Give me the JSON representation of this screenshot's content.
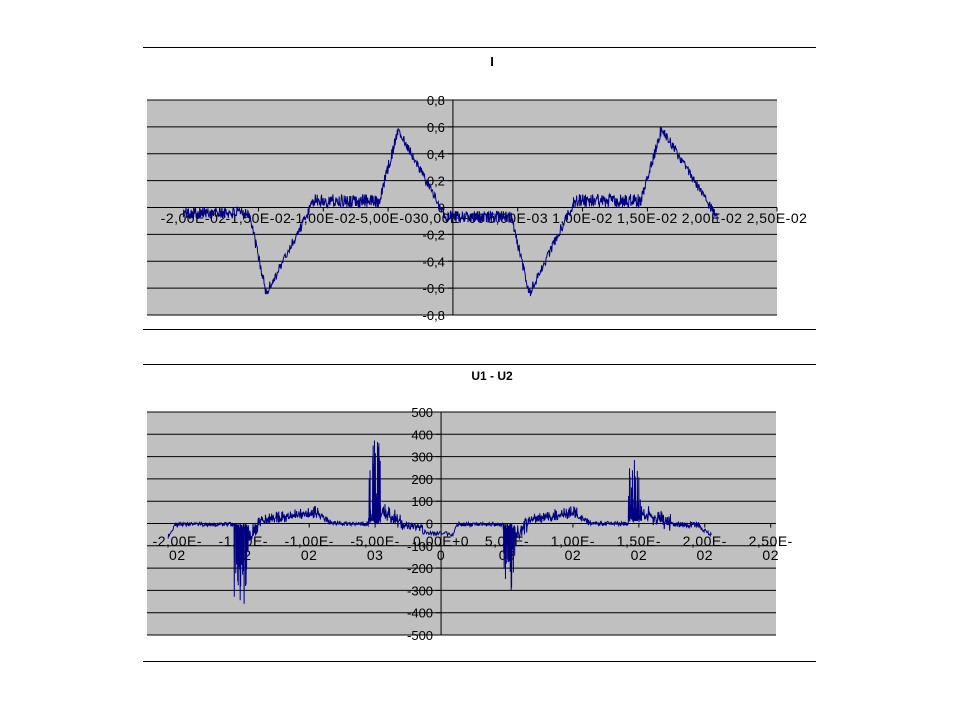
{
  "page": {
    "background_color": "#ffffff",
    "separator_color": "#000000"
  },
  "chart_data": [
    {
      "type": "line",
      "title": "I",
      "series_color": "#000080",
      "plot_bg_color": "#c0c0c0",
      "grid_color": "#000000",
      "x_range": [
        -0.0236,
        0.025
      ],
      "y_range": [
        -0.8,
        0.8
      ],
      "grid": "horizontal",
      "legend": "none",
      "x_ticks": [
        {
          "v": -0.02,
          "lines": [
            "-2,00E-02"
          ]
        },
        {
          "v": -0.015,
          "lines": [
            "-1,50E-02"
          ]
        },
        {
          "v": -0.01,
          "lines": [
            "-1,00E-02"
          ]
        },
        {
          "v": -0.005,
          "lines": [
            "-5,00E-03"
          ]
        },
        {
          "v": 0,
          "lines": [
            "0,00E+00"
          ]
        },
        {
          "v": 0.005,
          "lines": [
            "5,00E-03"
          ]
        },
        {
          "v": 0.01,
          "lines": [
            "1,00E-02"
          ]
        },
        {
          "v": 0.015,
          "lines": [
            "1,50E-02"
          ]
        },
        {
          "v": 0.02,
          "lines": [
            "2,00E-02"
          ]
        },
        {
          "v": 0.025,
          "lines": [
            "2,50E-02"
          ]
        }
      ],
      "y_ticks": [
        {
          "v": 0.8,
          "label": "0,8"
        },
        {
          "v": 0.6,
          "label": "0,6"
        },
        {
          "v": 0.4,
          "label": "0,4"
        },
        {
          "v": 0.2,
          "label": "0,2"
        },
        {
          "v": 0,
          "label": "0"
        },
        {
          "v": -0.2,
          "label": "-0,2"
        },
        {
          "v": -0.4,
          "label": "-0,4"
        },
        {
          "v": -0.6,
          "label": "-0,6"
        },
        {
          "v": -0.8,
          "label": "-0,8"
        }
      ],
      "segments": [
        {
          "x0": -0.0208,
          "x1": -0.0157,
          "y0": -0.04,
          "y1": -0.04,
          "n": 170,
          "noise": 0.045
        },
        {
          "x0": -0.0157,
          "x1": -0.0144,
          "y0": -0.05,
          "y1": -0.64,
          "n": 40,
          "noise": 0.04
        },
        {
          "x0": -0.0144,
          "x1": -0.0108,
          "y0": -0.64,
          "y1": 0.03,
          "n": 80,
          "noise": 0.04
        },
        {
          "x0": -0.0108,
          "x1": -0.0057,
          "y0": 0.05,
          "y1": 0.05,
          "n": 170,
          "noise": 0.05
        },
        {
          "x0": -0.0057,
          "x1": -0.0042,
          "y0": 0.05,
          "y1": 0.58,
          "n": 50,
          "noise": 0.045
        },
        {
          "x0": -0.0042,
          "x1": -0.0004,
          "y0": 0.58,
          "y1": -0.1,
          "n": 100,
          "noise": 0.035
        },
        {
          "x0": -0.0004,
          "x1": 0.0045,
          "y0": -0.07,
          "y1": -0.07,
          "n": 170,
          "noise": 0.045
        },
        {
          "x0": 0.0045,
          "x1": 0.0059,
          "y0": -0.07,
          "y1": -0.64,
          "n": 40,
          "noise": 0.04
        },
        {
          "x0": 0.0059,
          "x1": 0.0093,
          "y0": -0.64,
          "y1": 0.03,
          "n": 80,
          "noise": 0.04
        },
        {
          "x0": 0.0093,
          "x1": 0.0145,
          "y0": 0.05,
          "y1": 0.05,
          "n": 170,
          "noise": 0.05
        },
        {
          "x0": 0.0145,
          "x1": 0.0161,
          "y0": 0.05,
          "y1": 0.59,
          "n": 50,
          "noise": 0.045
        },
        {
          "x0": 0.0161,
          "x1": 0.0204,
          "y0": 0.59,
          "y1": -0.08,
          "n": 110,
          "noise": 0.035
        }
      ]
    },
    {
      "type": "line",
      "title": "U1 - U2",
      "series_color": "#000080",
      "plot_bg_color": "#c0c0c0",
      "grid_color": "#000000",
      "x_range": [
        -0.0223,
        0.0254
      ],
      "y_range": [
        -500,
        500
      ],
      "grid": "horizontal",
      "legend": "none",
      "x_ticks": [
        {
          "v": -0.02,
          "lines": [
            "-2,00E-",
            "02"
          ]
        },
        {
          "v": -0.015,
          "lines": [
            "-1,50E-",
            "02"
          ]
        },
        {
          "v": -0.01,
          "lines": [
            "-1,00E-",
            "02"
          ]
        },
        {
          "v": -0.005,
          "lines": [
            "-5,00E-",
            "03"
          ]
        },
        {
          "v": 0,
          "lines": [
            "0,00E+0",
            "0"
          ]
        },
        {
          "v": 0.005,
          "lines": [
            "5,00E-",
            "03"
          ]
        },
        {
          "v": 0.01,
          "lines": [
            "1,00E-",
            "02"
          ]
        },
        {
          "v": 0.015,
          "lines": [
            "1,50E-",
            "02"
          ]
        },
        {
          "v": 0.02,
          "lines": [
            "2,00E-",
            "02"
          ]
        },
        {
          "v": 0.025,
          "lines": [
            "2,50E-",
            "02"
          ]
        }
      ],
      "y_ticks": [
        {
          "v": 500,
          "label": "500"
        },
        {
          "v": 400,
          "label": "400"
        },
        {
          "v": 300,
          "label": "300"
        },
        {
          "v": 200,
          "label": "200"
        },
        {
          "v": 100,
          "label": "100"
        },
        {
          "v": 0,
          "label": "0"
        },
        {
          "v": -100,
          "label": "-100"
        },
        {
          "v": -200,
          "label": "-200"
        },
        {
          "v": -300,
          "label": "-300"
        },
        {
          "v": -400,
          "label": "-400"
        },
        {
          "v": -500,
          "label": "-500"
        }
      ],
      "segments": [
        {
          "x0": -0.0207,
          "x1": -0.0202,
          "y0": -60,
          "y1": -8,
          "n": 14,
          "noise": 10
        },
        {
          "x0": -0.0202,
          "x1": -0.0157,
          "y0": -4,
          "y1": -4,
          "n": 150,
          "noise": 9
        },
        {
          "x0": -0.0157,
          "x1": -0.0146,
          "y0": -10,
          "y1": -10,
          "n": 60,
          "noise": 12,
          "spikeDown": 360
        },
        {
          "x0": -0.0146,
          "x1": -0.0137,
          "y0": -50,
          "y1": 0,
          "n": 30,
          "noise": 35
        },
        {
          "x0": -0.0137,
          "x1": -0.0093,
          "y0": 8,
          "y1": 42,
          "n": 150,
          "noise": 16,
          "spikeUp": 40
        },
        {
          "x0": -0.0093,
          "x1": -0.0084,
          "y0": 42,
          "y1": 4,
          "n": 30,
          "noise": 14
        },
        {
          "x0": -0.0084,
          "x1": -0.0055,
          "y0": 2,
          "y1": -2,
          "n": 100,
          "noise": 9
        },
        {
          "x0": -0.0055,
          "x1": -0.0046,
          "y0": 10,
          "y1": 10,
          "n": 55,
          "noise": 15,
          "spikeUp": 400
        },
        {
          "x0": -0.0046,
          "x1": -0.0029,
          "y0": 60,
          "y1": 5,
          "n": 60,
          "noise": 40,
          "spikeDown": 30
        },
        {
          "x0": -0.0029,
          "x1": -0.0014,
          "y0": -5,
          "y1": -20,
          "n": 50,
          "noise": 16
        },
        {
          "x0": -0.0014,
          "x1": 0.0009,
          "y0": -38,
          "y1": -50,
          "n": 40,
          "noise": 10
        },
        {
          "x0": 0.0009,
          "x1": 0.0012,
          "y0": -50,
          "y1": -6,
          "n": 6,
          "noise": 5
        },
        {
          "x0": 0.0012,
          "x1": 0.0047,
          "y0": -4,
          "y1": -4,
          "n": 120,
          "noise": 9
        },
        {
          "x0": 0.0047,
          "x1": 0.0056,
          "y0": -10,
          "y1": -10,
          "n": 55,
          "noise": 12,
          "spikeDown": 300
        },
        {
          "x0": 0.0056,
          "x1": 0.0066,
          "y0": -50,
          "y1": 0,
          "n": 30,
          "noise": 35
        },
        {
          "x0": 0.0066,
          "x1": 0.0103,
          "y0": 8,
          "y1": 42,
          "n": 130,
          "noise": 16,
          "spikeUp": 40
        },
        {
          "x0": 0.0103,
          "x1": 0.0112,
          "y0": 42,
          "y1": 4,
          "n": 30,
          "noise": 14
        },
        {
          "x0": 0.0112,
          "x1": 0.0142,
          "y0": 2,
          "y1": -2,
          "n": 100,
          "noise": 9
        },
        {
          "x0": 0.0142,
          "x1": 0.0152,
          "y0": 15,
          "y1": 15,
          "n": 55,
          "noise": 12,
          "spikeUp": 290
        },
        {
          "x0": 0.0152,
          "x1": 0.0174,
          "y0": 50,
          "y1": 5,
          "n": 75,
          "noise": 40,
          "spikeDown": 25
        },
        {
          "x0": 0.0174,
          "x1": 0.0196,
          "y0": -2,
          "y1": -6,
          "n": 75,
          "noise": 14
        },
        {
          "x0": 0.0196,
          "x1": 0.0205,
          "y0": -15,
          "y1": -50,
          "n": 22,
          "noise": 10
        }
      ]
    }
  ]
}
